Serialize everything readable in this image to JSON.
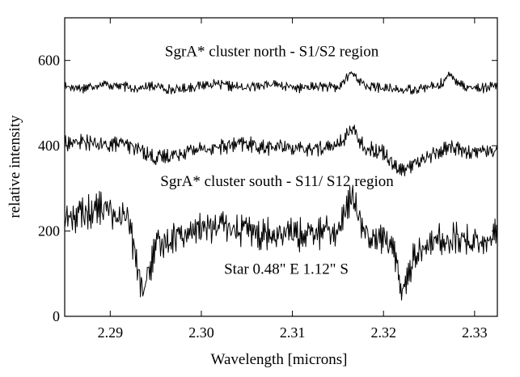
{
  "chart_data": {
    "type": "line",
    "title": "",
    "xlabel": "Wavelength [microns]",
    "ylabel": "relative intensity",
    "xlim": [
      2.285,
      2.3325
    ],
    "ylim": [
      0,
      700
    ],
    "x_ticks": [
      2.29,
      2.3,
      2.31,
      2.32,
      2.33
    ],
    "x_tick_labels": [
      "2.29",
      "2.30",
      "2.31",
      "2.32",
      "2.33"
    ],
    "y_ticks": [
      0,
      200,
      400,
      600
    ],
    "y_tick_labels": [
      "0",
      "200",
      "400",
      "600"
    ],
    "grid": false,
    "annotations": [
      {
        "text": "SgrA* cluster  north - S1/S2 region",
        "x": 2.296,
        "y": 610
      },
      {
        "text": "SgrA* cluster  south - S11/ S12 region",
        "x": 2.2955,
        "y": 305
      },
      {
        "text": "Star 0.48\" E  1.12\" S",
        "x": 2.3025,
        "y": 100
      }
    ],
    "series": [
      {
        "x": [
          2.285,
          2.287,
          2.289,
          2.291,
          2.293,
          2.295,
          2.297,
          2.299,
          2.301,
          2.303,
          2.305,
          2.307,
          2.309,
          2.311,
          2.313,
          2.315,
          2.3165,
          2.318,
          2.32,
          2.322,
          2.324,
          2.326,
          2.3273,
          2.329,
          2.331,
          2.3325
        ],
        "values": [
          540,
          535,
          545,
          540,
          535,
          540,
          530,
          538,
          545,
          540,
          535,
          545,
          540,
          535,
          540,
          535,
          572,
          540,
          535,
          530,
          535,
          540,
          565,
          538,
          535,
          540
        ]
      },
      {
        "x": [
          2.285,
          2.287,
          2.289,
          2.291,
          2.293,
          2.295,
          2.297,
          2.299,
          2.301,
          2.303,
          2.305,
          2.307,
          2.309,
          2.311,
          2.313,
          2.315,
          2.3165,
          2.318,
          2.32,
          2.322,
          2.3235,
          2.326,
          2.3273,
          2.329,
          2.331,
          2.3325
        ],
        "values": [
          405,
          410,
          400,
          405,
          395,
          370,
          380,
          390,
          395,
          400,
          405,
          395,
          400,
          390,
          395,
          400,
          440,
          395,
          385,
          340,
          360,
          385,
          400,
          385,
          390,
          385
        ]
      },
      {
        "x": [
          2.285,
          2.287,
          2.289,
          2.2905,
          2.292,
          2.2932,
          2.2936,
          2.295,
          2.297,
          2.299,
          2.301,
          2.303,
          2.305,
          2.307,
          2.309,
          2.311,
          2.313,
          2.315,
          2.3165,
          2.318,
          2.32,
          2.3215,
          2.3221,
          2.3235,
          2.326,
          2.328,
          2.33,
          2.3325
        ],
        "values": [
          230,
          240,
          255,
          240,
          225,
          90,
          60,
          160,
          190,
          200,
          210,
          205,
          200,
          195,
          200,
          190,
          195,
          200,
          280,
          200,
          185,
          130,
          60,
          150,
          180,
          185,
          175,
          190
        ]
      }
    ]
  }
}
